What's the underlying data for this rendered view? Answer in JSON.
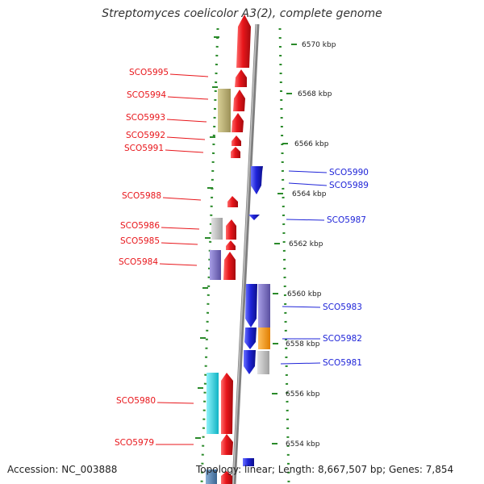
{
  "title": "Streptomyces coelicolor A3(2), complete genome",
  "accession_text": "Accession: NC_003888",
  "summary_text": "Topology: linear; Length: 8,667,507 bp; Genes: 7,854",
  "scale": {
    "unit": "kbp",
    "labels": [
      "6570 kbp",
      "6568 kbp",
      "6566 kbp",
      "6564 kbp",
      "6562 kbp",
      "6560 kbp",
      "6558 kbp",
      "6556 kbp",
      "6554 kbp"
    ]
  },
  "colors": {
    "reverse_strand": "#e8161b",
    "forward_strand": "#1f24d8",
    "backbone": "#888888",
    "tick": "#2a8a2a",
    "cog_tan": "#b8ad6e",
    "cog_gray": "#bdbdbd",
    "cog_purple": "#7a6fbf",
    "cog_orange": "#ff9a00",
    "cog_cyan": "#19d6e6",
    "cog_steel": "#4f7fb0"
  },
  "left_genes": [
    "SCO5995",
    "SCO5994",
    "SCO5993",
    "SCO5992",
    "SCO5991",
    "SCO5988",
    "SCO5986",
    "SCO5985",
    "SCO5984",
    "SCO5980",
    "SCO5979"
  ],
  "right_genes": [
    "SCO5990",
    "SCO5989",
    "SCO5987",
    "SCO5983",
    "SCO5982",
    "SCO5981"
  ]
}
